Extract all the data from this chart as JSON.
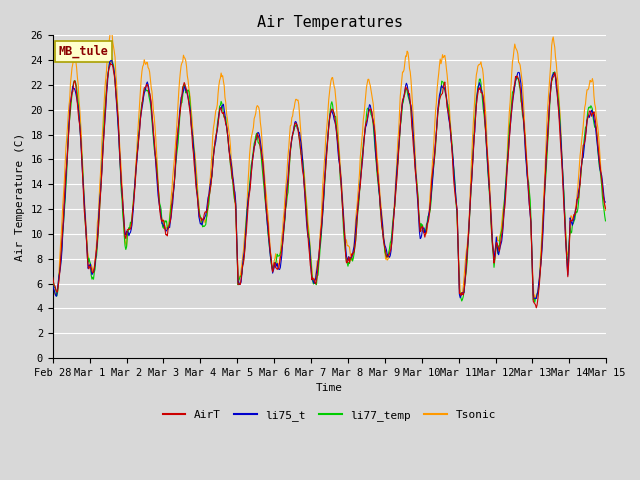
{
  "title": "Air Temperatures",
  "xlabel": "Time",
  "ylabel": "Air Temperature (C)",
  "ylim": [
    0,
    26
  ],
  "yticks": [
    0,
    2,
    4,
    6,
    8,
    10,
    12,
    14,
    16,
    18,
    20,
    22,
    24,
    26
  ],
  "colors": {
    "AirT": "#cc0000",
    "li75_t": "#0000cc",
    "li77_temp": "#00cc00",
    "Tsonic": "#ff9900"
  },
  "line_width": 0.8,
  "fig_bg": "#d8d8d8",
  "plot_bg": "#d8d8d8",
  "station_label": "MB_tule",
  "title_fontsize": 11,
  "label_fontsize": 8,
  "tick_fontsize": 7.5
}
